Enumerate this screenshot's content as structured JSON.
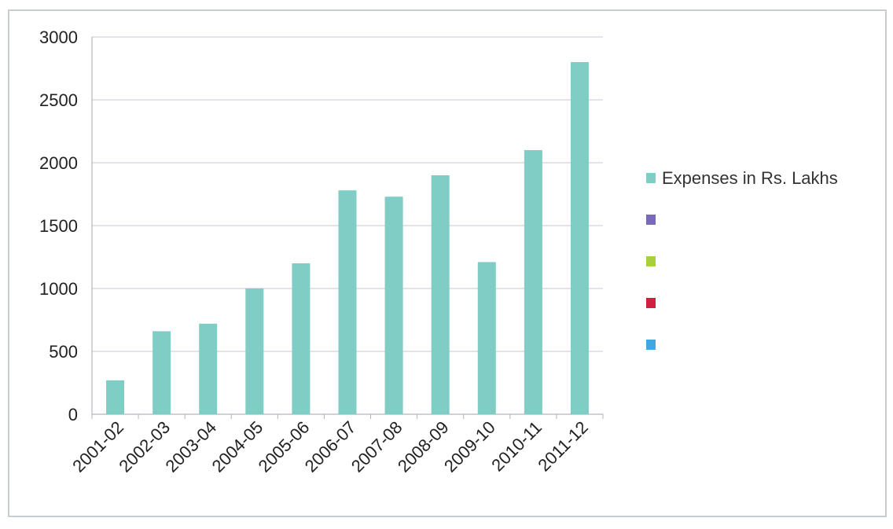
{
  "chart_data": {
    "type": "bar",
    "title": "",
    "xlabel": "",
    "ylabel": "",
    "categories": [
      "2001-02",
      "2002-03",
      "2003-04",
      "2004-05",
      "2005-06",
      "2006-07",
      "2007-08",
      "2008-09",
      "2009-10",
      "2010-11",
      "2011-12"
    ],
    "series": [
      {
        "name": "Expenses in Rs. Lakhs",
        "color": "#7fcdc4",
        "values": [
          270,
          660,
          720,
          1000,
          1200,
          1780,
          1730,
          1900,
          1210,
          2100,
          2800
        ]
      }
    ],
    "ylim": [
      0,
      3000
    ],
    "yticks": [
      0,
      500,
      1000,
      1500,
      2000,
      2500,
      3000
    ],
    "grid": true,
    "legend_position": "right",
    "legend": [
      {
        "label": "Expenses in Rs. Lakhs",
        "color": "#7fcdc4"
      },
      {
        "label": "",
        "color": "#7a68b8"
      },
      {
        "label": "",
        "color": "#a8cf3c"
      },
      {
        "label": "",
        "color": "#d02040"
      },
      {
        "label": "",
        "color": "#40a8e0"
      }
    ]
  }
}
